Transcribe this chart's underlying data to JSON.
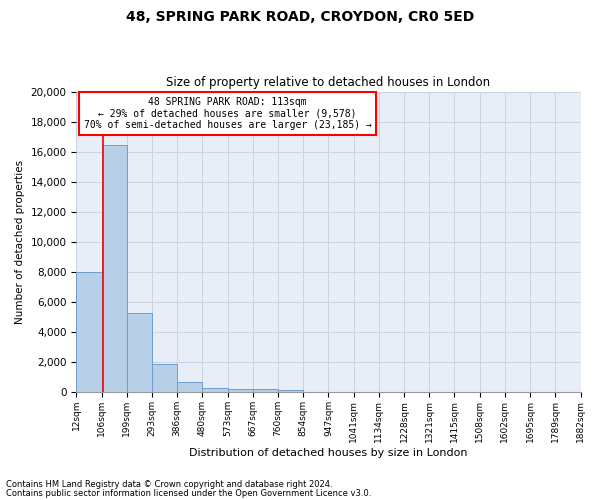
{
  "title": "48, SPRING PARK ROAD, CROYDON, CR0 5ED",
  "subtitle": "Size of property relative to detached houses in London",
  "xlabel": "Distribution of detached houses by size in London",
  "ylabel": "Number of detached properties",
  "bin_labels": [
    "12sqm",
    "106sqm",
    "199sqm",
    "293sqm",
    "386sqm",
    "480sqm",
    "573sqm",
    "667sqm",
    "760sqm",
    "854sqm",
    "947sqm",
    "1041sqm",
    "1134sqm",
    "1228sqm",
    "1321sqm",
    "1415sqm",
    "1508sqm",
    "1602sqm",
    "1695sqm",
    "1789sqm",
    "1882sqm"
  ],
  "bar_heights": [
    8000,
    16500,
    5300,
    1850,
    700,
    300,
    200,
    200,
    150,
    0,
    0,
    0,
    0,
    0,
    0,
    0,
    0,
    0,
    0,
    0
  ],
  "bar_color": "#b8cfe8",
  "bar_edgecolor": "#6a9fcf",
  "bar_linewidth": 0.7,
  "grid_color": "#c8d4e4",
  "background_color": "#e8eef8",
  "vline_color": "red",
  "vline_linewidth": 1.2,
  "vline_pos": 1.075,
  "annotation_title": "48 SPRING PARK ROAD: 113sqm",
  "annotation_line2": "← 29% of detached houses are smaller (9,578)",
  "annotation_line3": "70% of semi-detached houses are larger (23,185) →",
  "annotation_box_edgecolor": "red",
  "annotation_box_facecolor": "white",
  "ylim": [
    0,
    20000
  ],
  "yticks": [
    0,
    2000,
    4000,
    6000,
    8000,
    10000,
    12000,
    14000,
    16000,
    18000,
    20000
  ],
  "footnote1": "Contains HM Land Registry data © Crown copyright and database right 2024.",
  "footnote2": "Contains public sector information licensed under the Open Government Licence v3.0."
}
